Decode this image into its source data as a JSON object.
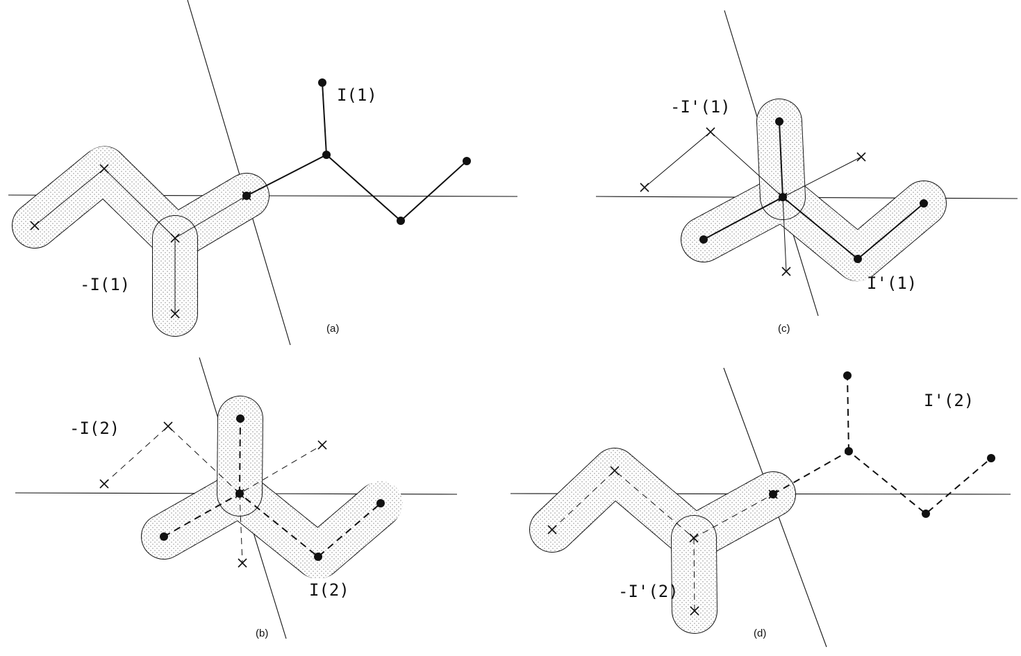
{
  "panels": {
    "a": {
      "caption": "(a)",
      "upper_label": "I(1)",
      "lower_label": "-I(1)"
    },
    "b": {
      "caption": "(b)",
      "upper_label": "-I(2)",
      "lower_label": "I(2)"
    },
    "c": {
      "caption": "(c)",
      "upper_label": "-I'(1)",
      "lower_label": "I'(1)"
    },
    "d": {
      "caption": "(d)",
      "upper_label": "I'(2)",
      "lower_label": "-I'(2)"
    }
  },
  "colors": {
    "ink": "#111111",
    "paper": "#ffffff"
  }
}
